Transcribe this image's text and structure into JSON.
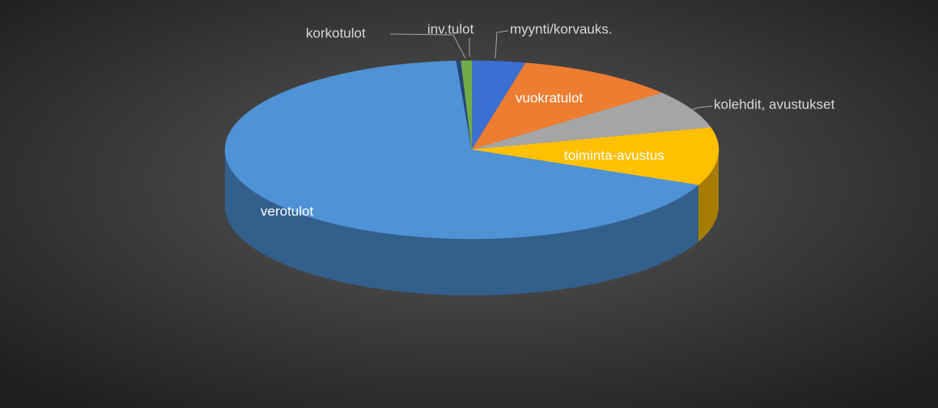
{
  "chart_data": {
    "type": "pie",
    "categories": [
      "myynti/korvauks.",
      "vuokratulot",
      "kolehdit, avustukset",
      "toiminta-avustus",
      "verotulot",
      "korkotulot",
      "inv.tulot"
    ],
    "values": [
      3.5,
      10.5,
      7,
      10.5,
      67.5,
      0.3,
      0.7
    ],
    "colors": [
      "#3b6fd1",
      "#ed7d31",
      "#a5a5a5",
      "#ffc000",
      "#4f92d6",
      "#264478",
      "#70ad47"
    ]
  }
}
